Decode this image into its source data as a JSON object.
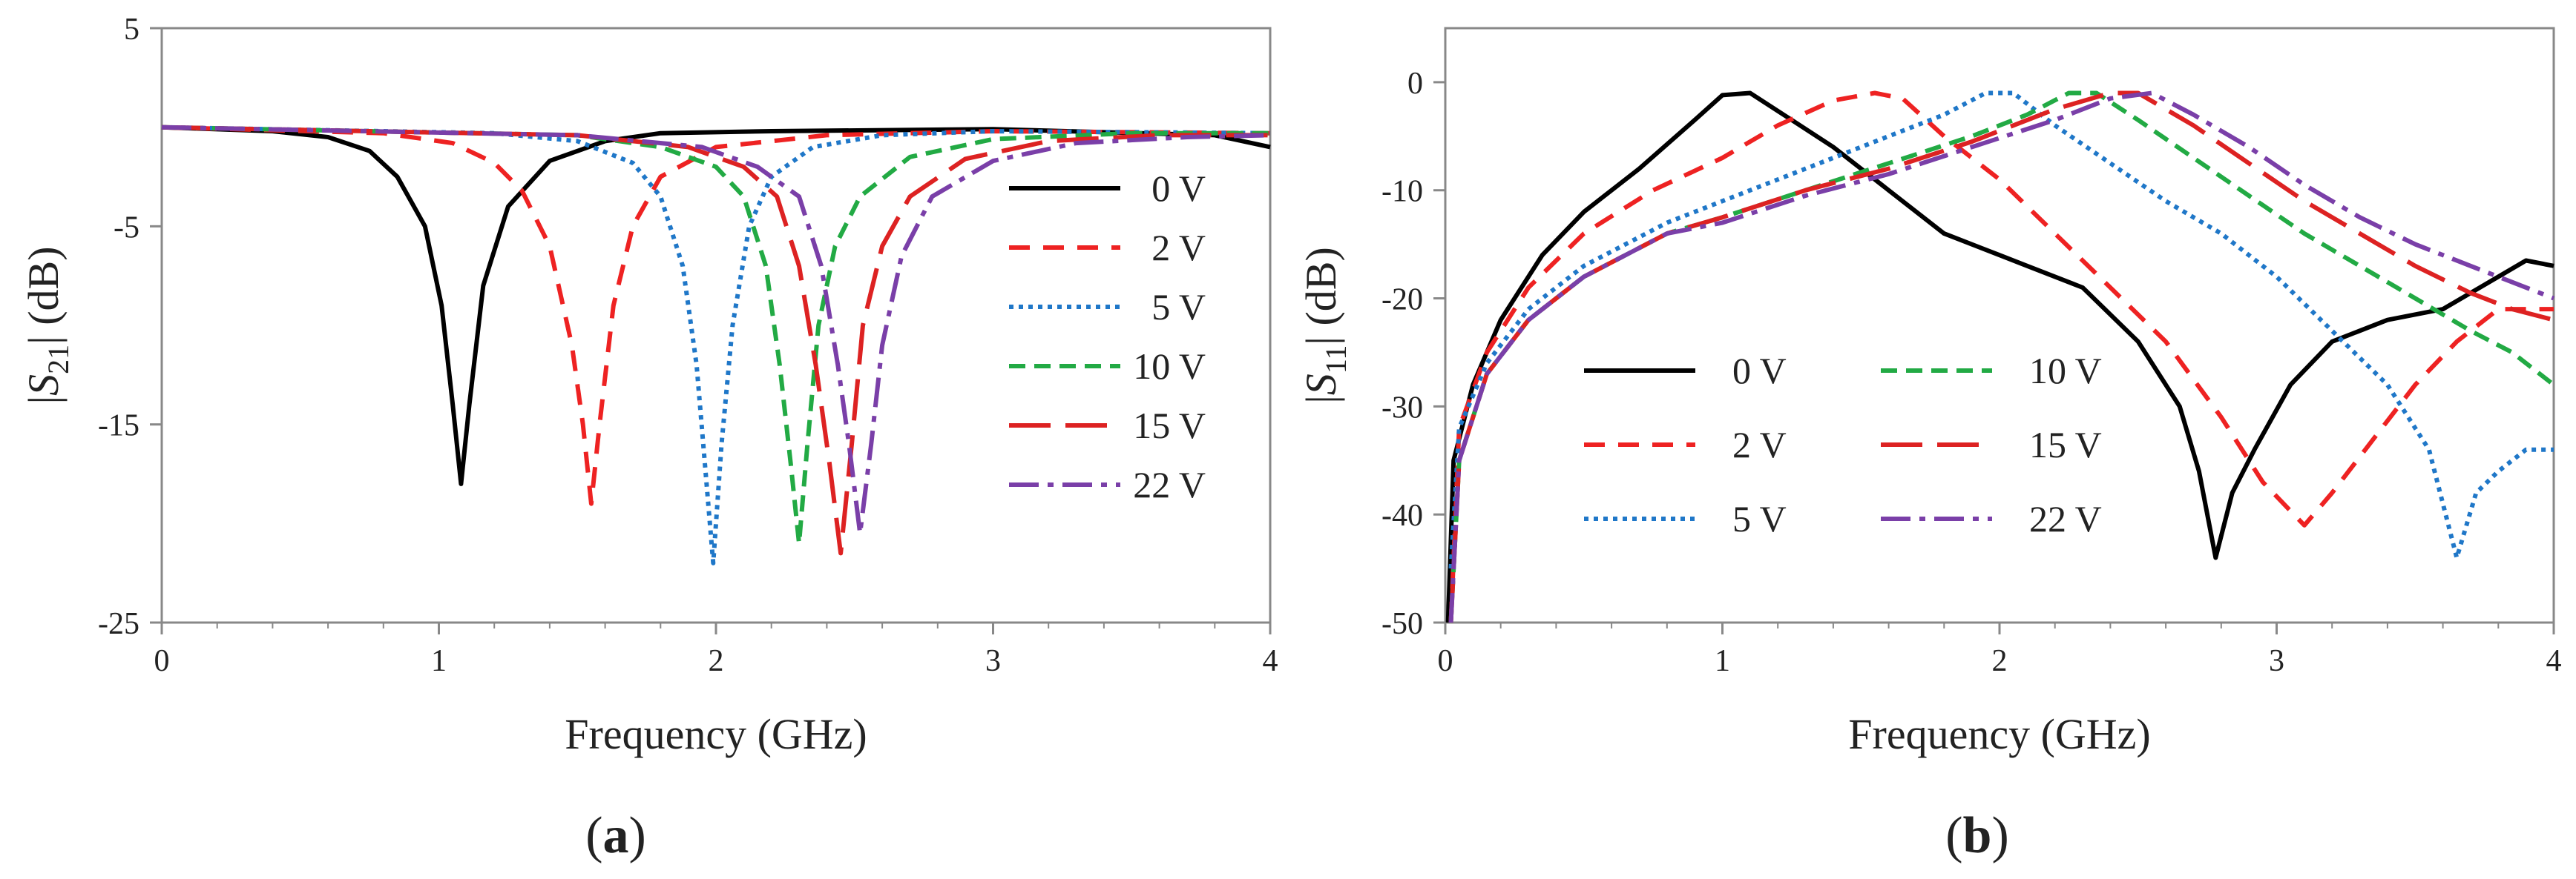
{
  "chart_data": [
    {
      "id": "a",
      "type": "line",
      "caption": "a",
      "xlabel": "Frequency (GHz)",
      "ylabel_parts": [
        "|",
        "S",
        "21",
        "| (dB)"
      ],
      "xlim": [
        0,
        4
      ],
      "ylim": [
        -25,
        5
      ],
      "xticks": [
        "0",
        "1",
        "2",
        "3",
        "4"
      ],
      "yticks": [
        "5",
        "-5",
        "-15",
        "-25"
      ],
      "ytick_values": [
        5,
        -5,
        -15,
        -25
      ],
      "grid": false,
      "legend_position": "right",
      "series": [
        {
          "name": "0 V",
          "color": "#000000",
          "dash": "solid",
          "points": [
            [
              0,
              0
            ],
            [
              0.4,
              -0.2
            ],
            [
              0.6,
              -0.5
            ],
            [
              0.75,
              -1.2
            ],
            [
              0.85,
              -2.5
            ],
            [
              0.95,
              -5
            ],
            [
              1.01,
              -9
            ],
            [
              1.05,
              -14
            ],
            [
              1.08,
              -18
            ],
            [
              1.11,
              -14
            ],
            [
              1.16,
              -8
            ],
            [
              1.25,
              -4
            ],
            [
              1.4,
              -1.7
            ],
            [
              1.6,
              -0.7
            ],
            [
              1.8,
              -0.3
            ],
            [
              2.2,
              -0.2
            ],
            [
              3.0,
              -0.1
            ],
            [
              3.8,
              -0.4
            ],
            [
              4.0,
              -1.0
            ]
          ]
        },
        {
          "name": "2 V",
          "color": "#ee2222",
          "dash": "28,18",
          "points": [
            [
              0,
              0
            ],
            [
              0.8,
              -0.3
            ],
            [
              1.05,
              -0.8
            ],
            [
              1.2,
              -1.8
            ],
            [
              1.3,
              -3.2
            ],
            [
              1.4,
              -6
            ],
            [
              1.48,
              -11
            ],
            [
              1.52,
              -15
            ],
            [
              1.55,
              -19
            ],
            [
              1.58,
              -15
            ],
            [
              1.63,
              -9
            ],
            [
              1.7,
              -5
            ],
            [
              1.8,
              -2.5
            ],
            [
              2.0,
              -1
            ],
            [
              2.4,
              -0.4
            ],
            [
              3.0,
              -0.2
            ],
            [
              4.0,
              -0.3
            ]
          ]
        },
        {
          "name": "5 V",
          "color": "#1f77c8",
          "dash": "6,7",
          "points": [
            [
              0,
              0
            ],
            [
              1.2,
              -0.3
            ],
            [
              1.5,
              -0.7
            ],
            [
              1.7,
              -1.8
            ],
            [
              1.8,
              -3.5
            ],
            [
              1.88,
              -7
            ],
            [
              1.93,
              -12
            ],
            [
              1.96,
              -17
            ],
            [
              1.99,
              -22
            ],
            [
              2.02,
              -16
            ],
            [
              2.06,
              -10
            ],
            [
              2.12,
              -5
            ],
            [
              2.2,
              -2.5
            ],
            [
              2.35,
              -1
            ],
            [
              2.6,
              -0.4
            ],
            [
              3.0,
              -0.2
            ],
            [
              4.0,
              -0.3
            ]
          ]
        },
        {
          "name": "10 V",
          "color": "#22aa44",
          "dash": "22,12",
          "points": [
            [
              0,
              0
            ],
            [
              1.5,
              -0.4
            ],
            [
              1.8,
              -1
            ],
            [
              2.0,
              -2
            ],
            [
              2.1,
              -3.5
            ],
            [
              2.18,
              -7
            ],
            [
              2.23,
              -12
            ],
            [
              2.27,
              -17
            ],
            [
              2.3,
              -21
            ],
            [
              2.33,
              -16
            ],
            [
              2.37,
              -10
            ],
            [
              2.43,
              -6
            ],
            [
              2.52,
              -3.5
            ],
            [
              2.7,
              -1.5
            ],
            [
              3.0,
              -0.6
            ],
            [
              3.5,
              -0.3
            ],
            [
              4.0,
              -0.3
            ]
          ]
        },
        {
          "name": "15 V",
          "color": "#dd2222",
          "dash": "56,20",
          "points": [
            [
              0,
              0
            ],
            [
              1.5,
              -0.4
            ],
            [
              1.9,
              -1
            ],
            [
              2.1,
              -2
            ],
            [
              2.22,
              -3.5
            ],
            [
              2.3,
              -7
            ],
            [
              2.36,
              -12
            ],
            [
              2.41,
              -17
            ],
            [
              2.45,
              -21.5
            ],
            [
              2.49,
              -16
            ],
            [
              2.53,
              -10
            ],
            [
              2.6,
              -6
            ],
            [
              2.7,
              -3.5
            ],
            [
              2.9,
              -1.6
            ],
            [
              3.2,
              -0.7
            ],
            [
              3.6,
              -0.4
            ],
            [
              4.0,
              -0.4
            ]
          ]
        },
        {
          "name": "22 V",
          "color": "#7a3fa8",
          "dash": "40,12,8,12",
          "points": [
            [
              0,
              0
            ],
            [
              1.5,
              -0.4
            ],
            [
              1.95,
              -1
            ],
            [
              2.15,
              -2
            ],
            [
              2.3,
              -3.5
            ],
            [
              2.38,
              -7
            ],
            [
              2.44,
              -12
            ],
            [
              2.48,
              -16
            ],
            [
              2.52,
              -20.5
            ],
            [
              2.56,
              -16
            ],
            [
              2.6,
              -11
            ],
            [
              2.67,
              -6.5
            ],
            [
              2.78,
              -3.5
            ],
            [
              3.0,
              -1.7
            ],
            [
              3.3,
              -0.8
            ],
            [
              3.7,
              -0.5
            ],
            [
              4.0,
              -0.4
            ]
          ]
        }
      ]
    },
    {
      "id": "b",
      "type": "line",
      "caption": "b",
      "xlabel": "Frequency (GHz)",
      "ylabel_parts": [
        "|",
        "S",
        "11",
        "| (dB)"
      ],
      "xlim": [
        0,
        4
      ],
      "ylim": [
        -50,
        5
      ],
      "xticks": [
        "0",
        "1",
        "2",
        "3",
        "4"
      ],
      "yticks": [
        "0",
        "-10",
        "-20",
        "-30",
        "-40",
        "-50"
      ],
      "ytick_values": [
        0,
        -10,
        -20,
        -30,
        -40,
        -50
      ],
      "grid": false,
      "legend_position": "lower-left",
      "series": [
        {
          "name": "0 V",
          "color": "#000000",
          "dash": "solid",
          "points": [
            [
              0.01,
              -50
            ],
            [
              0.03,
              -35
            ],
            [
              0.1,
              -28
            ],
            [
              0.2,
              -22
            ],
            [
              0.35,
              -16
            ],
            [
              0.5,
              -12
            ],
            [
              0.7,
              -8
            ],
            [
              0.9,
              -3.5
            ],
            [
              1.0,
              -1.2
            ],
            [
              1.1,
              -1
            ],
            [
              1.25,
              -3.5
            ],
            [
              1.4,
              -6
            ],
            [
              1.6,
              -10
            ],
            [
              1.8,
              -14
            ],
            [
              2.0,
              -16
            ],
            [
              2.1,
              -17
            ],
            [
              2.3,
              -19
            ],
            [
              2.5,
              -24
            ],
            [
              2.65,
              -30
            ],
            [
              2.72,
              -36
            ],
            [
              2.78,
              -44
            ],
            [
              2.84,
              -38
            ],
            [
              2.92,
              -34
            ],
            [
              3.05,
              -28
            ],
            [
              3.2,
              -24
            ],
            [
              3.4,
              -22
            ],
            [
              3.6,
              -21
            ],
            [
              3.8,
              -18
            ],
            [
              3.9,
              -16.5
            ],
            [
              4.0,
              -17
            ]
          ]
        },
        {
          "name": "2 V",
          "color": "#ee2222",
          "dash": "28,18",
          "points": [
            [
              0.02,
              -50
            ],
            [
              0.05,
              -32
            ],
            [
              0.15,
              -25
            ],
            [
              0.3,
              -19
            ],
            [
              0.5,
              -14
            ],
            [
              0.75,
              -10
            ],
            [
              1.0,
              -7
            ],
            [
              1.2,
              -4
            ],
            [
              1.4,
              -1.7
            ],
            [
              1.55,
              -1
            ],
            [
              1.65,
              -1.5
            ],
            [
              1.8,
              -5
            ],
            [
              2.0,
              -9
            ],
            [
              2.2,
              -14
            ],
            [
              2.4,
              -19
            ],
            [
              2.6,
              -24
            ],
            [
              2.8,
              -31
            ],
            [
              2.95,
              -37
            ],
            [
              3.1,
              -41
            ],
            [
              3.2,
              -38
            ],
            [
              3.35,
              -33
            ],
            [
              3.5,
              -28
            ],
            [
              3.65,
              -24
            ],
            [
              3.8,
              -21
            ],
            [
              4.0,
              -21
            ]
          ]
        },
        {
          "name": "5 V",
          "color": "#1f77c8",
          "dash": "6,7",
          "points": [
            [
              0.02,
              -45
            ],
            [
              0.05,
              -32
            ],
            [
              0.15,
              -26
            ],
            [
              0.3,
              -21
            ],
            [
              0.5,
              -17
            ],
            [
              0.8,
              -13
            ],
            [
              1.0,
              -11
            ],
            [
              1.3,
              -8
            ],
            [
              1.6,
              -5
            ],
            [
              1.8,
              -3
            ],
            [
              1.95,
              -1
            ],
            [
              2.05,
              -1
            ],
            [
              2.2,
              -4
            ],
            [
              2.4,
              -7.5
            ],
            [
              2.6,
              -11
            ],
            [
              2.8,
              -14
            ],
            [
              3.0,
              -18
            ],
            [
              3.2,
              -23
            ],
            [
              3.4,
              -28
            ],
            [
              3.55,
              -34
            ],
            [
              3.65,
              -44
            ],
            [
              3.72,
              -38
            ],
            [
              3.8,
              -36
            ],
            [
              3.9,
              -34
            ],
            [
              4.0,
              -34
            ]
          ]
        },
        {
          "name": "10 V",
          "color": "#22aa44",
          "dash": "22,12",
          "points": [
            [
              0.02,
              -50
            ],
            [
              0.05,
              -35
            ],
            [
              0.15,
              -27
            ],
            [
              0.3,
              -22
            ],
            [
              0.5,
              -18
            ],
            [
              0.8,
              -14
            ],
            [
              1.0,
              -12.5
            ],
            [
              1.3,
              -10
            ],
            [
              1.6,
              -7.5
            ],
            [
              1.9,
              -5
            ],
            [
              2.1,
              -3
            ],
            [
              2.25,
              -1
            ],
            [
              2.35,
              -1
            ],
            [
              2.5,
              -3.5
            ],
            [
              2.7,
              -7
            ],
            [
              2.9,
              -10.5
            ],
            [
              3.1,
              -14
            ],
            [
              3.3,
              -17
            ],
            [
              3.5,
              -20
            ],
            [
              3.7,
              -23
            ],
            [
              3.85,
              -25
            ],
            [
              4.0,
              -28
            ]
          ]
        },
        {
          "name": "15 V",
          "color": "#dd2222",
          "dash": "56,20",
          "points": [
            [
              0.02,
              -50
            ],
            [
              0.05,
              -35
            ],
            [
              0.15,
              -27
            ],
            [
              0.3,
              -22
            ],
            [
              0.5,
              -18
            ],
            [
              0.8,
              -14
            ],
            [
              1.0,
              -12.5
            ],
            [
              1.3,
              -10
            ],
            [
              1.6,
              -8
            ],
            [
              1.9,
              -5.5
            ],
            [
              2.2,
              -2.5
            ],
            [
              2.4,
              -1
            ],
            [
              2.5,
              -1
            ],
            [
              2.7,
              -4
            ],
            [
              2.9,
              -7.5
            ],
            [
              3.1,
              -11
            ],
            [
              3.3,
              -14
            ],
            [
              3.5,
              -17
            ],
            [
              3.7,
              -19.5
            ],
            [
              3.85,
              -21
            ],
            [
              4.0,
              -22
            ]
          ]
        },
        {
          "name": "22 V",
          "color": "#7a3fa8",
          "dash": "40,12,8,12",
          "points": [
            [
              0.02,
              -50
            ],
            [
              0.05,
              -35
            ],
            [
              0.15,
              -27
            ],
            [
              0.3,
              -22
            ],
            [
              0.5,
              -18
            ],
            [
              0.8,
              -14
            ],
            [
              1.0,
              -13
            ],
            [
              1.3,
              -10.5
            ],
            [
              1.6,
              -8.5
            ],
            [
              1.9,
              -6
            ],
            [
              2.2,
              -3.5
            ],
            [
              2.4,
              -1.5
            ],
            [
              2.55,
              -1
            ],
            [
              2.7,
              -3
            ],
            [
              2.9,
              -6
            ],
            [
              3.1,
              -9.5
            ],
            [
              3.3,
              -12.5
            ],
            [
              3.5,
              -15
            ],
            [
              3.7,
              -17
            ],
            [
              3.85,
              -18.5
            ],
            [
              4.0,
              -20
            ]
          ]
        }
      ]
    }
  ]
}
